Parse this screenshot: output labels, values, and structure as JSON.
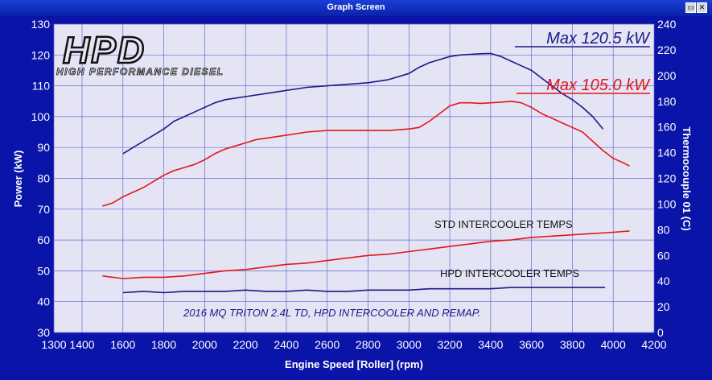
{
  "window": {
    "title": "Graph Screen",
    "restore_icon": "restore-icon",
    "close_icon": "close-icon"
  },
  "logo": {
    "mark": "HPD",
    "tagline": "HIGH PERFORMANCE DIESEL"
  },
  "chart_data": {
    "type": "line",
    "xlabel": "Engine Speed [Roller] (rpm)",
    "ylabel": "Power (kW)",
    "y2label": "Thermocouple 01 (C)",
    "xlim": [
      1300,
      4200
    ],
    "ylim": [
      30,
      130
    ],
    "y2lim": [
      0,
      240
    ],
    "xticks": [
      1300,
      1400,
      1600,
      1800,
      2000,
      2200,
      2400,
      2600,
      2800,
      3000,
      3200,
      3400,
      3600,
      3800,
      4000,
      4200
    ],
    "yticks": [
      30,
      40,
      50,
      60,
      70,
      80,
      90,
      100,
      110,
      120,
      130
    ],
    "y2ticks": [
      0,
      20,
      40,
      60,
      80,
      100,
      120,
      140,
      160,
      180,
      200,
      220,
      240
    ],
    "xtick_labels": [
      "1300",
      "1400",
      "1600",
      "1800",
      "2000",
      "2200",
      "2400",
      "2600",
      "2800",
      "3000",
      "3200",
      "3400",
      "3600",
      "3800",
      "4000",
      "4200"
    ],
    "ytick_labels": [
      "30",
      "40",
      "50",
      "60",
      "70",
      "80",
      "90",
      "100",
      "110",
      "120",
      "130"
    ],
    "y2tick_labels": [
      "0",
      "20",
      "40",
      "60",
      "80",
      "100",
      "120",
      "140",
      "160",
      "180",
      "200",
      "220",
      "240"
    ],
    "grid": true,
    "annotations": {
      "max_hpd": "Max 120.5 kW",
      "max_std": "Max 105.0 kW",
      "std_temps": "STD INTERCOOLER TEMPS",
      "hpd_temps": "HPD INTERCOOLER TEMPS",
      "caption": "2016 MQ TRITON 2.4L TD, HPD INTERCOOLER AND REMAP."
    },
    "colors": {
      "hpd": "#1a1a8a",
      "std": "#e01818",
      "plot_bg": "#e4e4f4",
      "grid": "#6a6ad0"
    },
    "series": [
      {
        "key": "hpd_power",
        "axis": "left",
        "color": "#1a1a8a",
        "x": [
          1600,
          1650,
          1700,
          1750,
          1800,
          1850,
          1900,
          1950,
          2000,
          2050,
          2100,
          2150,
          2200,
          2300,
          2400,
          2500,
          2600,
          2700,
          2800,
          2900,
          3000,
          3050,
          3100,
          3150,
          3200,
          3250,
          3300,
          3350,
          3400,
          3450,
          3500,
          3550,
          3600,
          3650,
          3700,
          3750,
          3800,
          3850,
          3900,
          3950
        ],
        "y": [
          88,
          90,
          92,
          94,
          96,
          98.5,
          100,
          101.5,
          103,
          104.5,
          105.5,
          106,
          106.5,
          107.5,
          108.5,
          109.5,
          110,
          110.5,
          111,
          112,
          114,
          116,
          117.5,
          118.5,
          119.5,
          120,
          120.2,
          120.4,
          120.5,
          119.5,
          118,
          116.5,
          115,
          112.5,
          110,
          107.5,
          105.5,
          103,
          100,
          96
        ]
      },
      {
        "key": "std_power",
        "axis": "left",
        "color": "#e01818",
        "x": [
          1500,
          1550,
          1600,
          1650,
          1700,
          1750,
          1800,
          1850,
          1900,
          1950,
          2000,
          2050,
          2100,
          2150,
          2200,
          2250,
          2300,
          2350,
          2400,
          2500,
          2600,
          2700,
          2800,
          2900,
          3000,
          3050,
          3100,
          3150,
          3200,
          3250,
          3300,
          3350,
          3400,
          3450,
          3500,
          3550,
          3600,
          3650,
          3700,
          3750,
          3800,
          3850,
          3900,
          3950,
          4000,
          4050,
          4080
        ],
        "y": [
          71,
          72,
          74,
          75.5,
          77,
          79,
          81,
          82.5,
          83.5,
          84.5,
          86,
          88,
          89.5,
          90.5,
          91.5,
          92.5,
          93,
          93.5,
          94,
          95,
          95.5,
          95.5,
          95.5,
          95.5,
          96,
          96.5,
          98.5,
          101,
          103.5,
          104.5,
          104.5,
          104.3,
          104.5,
          104.7,
          105,
          104.5,
          103,
          101,
          99.5,
          98,
          96.5,
          95,
          92,
          89,
          86.5,
          85,
          84
        ]
      },
      {
        "key": "std_temps",
        "axis": "right",
        "color": "#e01818",
        "x": [
          1500,
          1600,
          1700,
          1800,
          1900,
          2000,
          2100,
          2200,
          2300,
          2400,
          2500,
          2600,
          2700,
          2800,
          2900,
          3000,
          3100,
          3200,
          3300,
          3400,
          3500,
          3600,
          3700,
          3800,
          3900,
          4000,
          4080
        ],
        "y": [
          44,
          42,
          43,
          43,
          44,
          46,
          48,
          49,
          51,
          53,
          54,
          56,
          58,
          60,
          61,
          63,
          65,
          67,
          69,
          71,
          72,
          74,
          75,
          76,
          77,
          78,
          79
        ]
      },
      {
        "key": "hpd_temps",
        "axis": "right",
        "color": "#1a1a8a",
        "x": [
          1600,
          1700,
          1800,
          1900,
          2000,
          2100,
          2200,
          2300,
          2400,
          2500,
          2600,
          2700,
          2800,
          2900,
          3000,
          3100,
          3200,
          3300,
          3400,
          3500,
          3600,
          3700,
          3800,
          3900,
          3960
        ],
        "y": [
          31,
          32,
          31,
          32,
          32,
          32,
          33,
          32,
          32,
          33,
          32,
          32,
          33,
          33,
          33,
          34,
          34,
          34,
          34,
          35,
          35,
          35,
          35,
          35,
          35
        ]
      }
    ]
  }
}
